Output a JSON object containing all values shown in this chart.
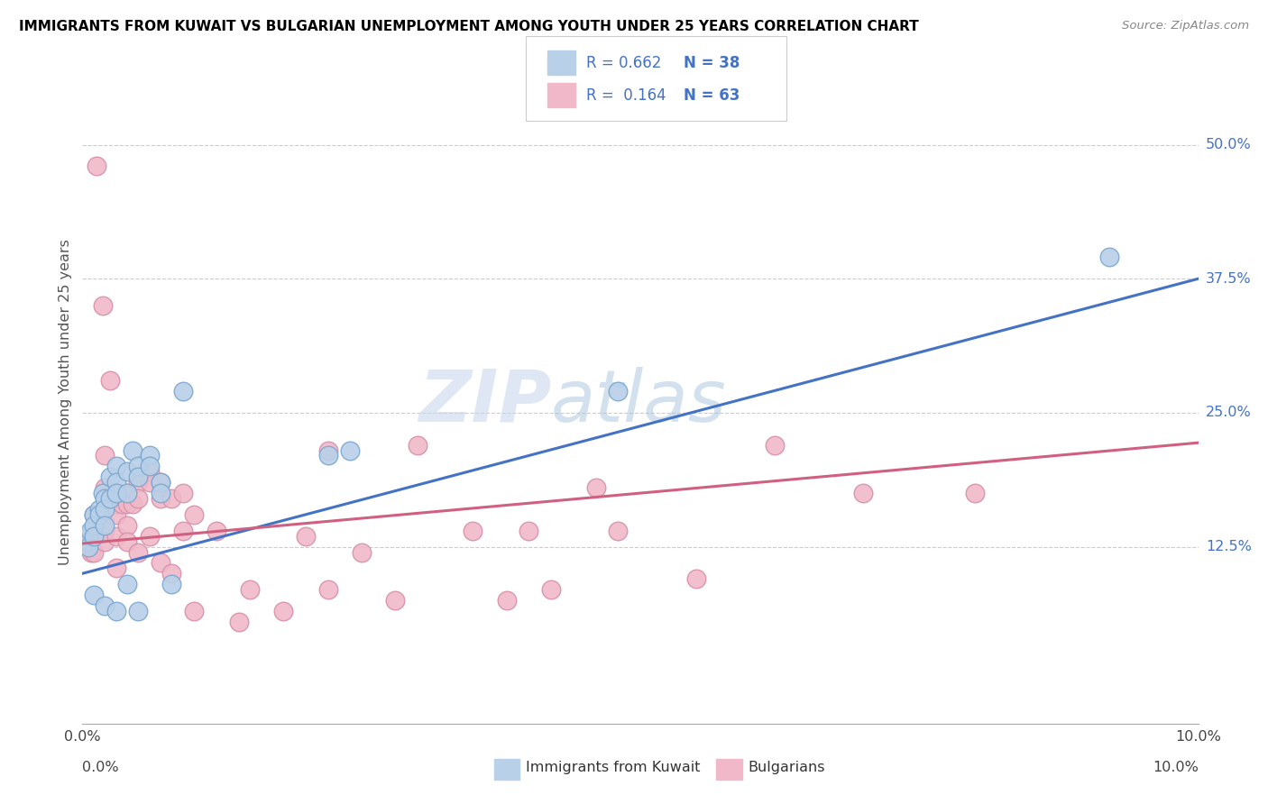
{
  "title": "IMMIGRANTS FROM KUWAIT VS BULGARIAN UNEMPLOYMENT AMONG YOUTH UNDER 25 YEARS CORRELATION CHART",
  "source": "Source: ZipAtlas.com",
  "ylabel": "Unemployment Among Youth under 25 years",
  "xlim": [
    0.0,
    0.1
  ],
  "ylim": [
    -0.04,
    0.56
  ],
  "ytick_positions": [
    0.125,
    0.25,
    0.375,
    0.5
  ],
  "ytick_labels": [
    "12.5%",
    "25.0%",
    "37.5%",
    "50.0%"
  ],
  "grid_color": "#cccccc",
  "watermark_zip": "ZIP",
  "watermark_atlas": "atlas",
  "color_blue_fill": "#b8d0e8",
  "color_blue_edge": "#7ba7d0",
  "color_pink_fill": "#f0b8c8",
  "color_pink_edge": "#d890a8",
  "line_color_blue": "#4472c4",
  "line_color_pink": "#d06080",
  "legend_text_color": "#4472c4",
  "blue_line_y0": 0.1,
  "blue_line_y1": 0.375,
  "pink_line_y0": 0.128,
  "pink_line_y1": 0.222,
  "blue_scatter_x": [
    0.0005,
    0.0005,
    0.0005,
    0.0007,
    0.001,
    0.001,
    0.001,
    0.001,
    0.0015,
    0.0015,
    0.0018,
    0.002,
    0.002,
    0.002,
    0.002,
    0.0025,
    0.0025,
    0.003,
    0.003,
    0.003,
    0.003,
    0.004,
    0.004,
    0.004,
    0.0045,
    0.005,
    0.005,
    0.005,
    0.006,
    0.006,
    0.007,
    0.007,
    0.008,
    0.009,
    0.022,
    0.024,
    0.048,
    0.092
  ],
  "blue_scatter_y": [
    0.135,
    0.13,
    0.125,
    0.14,
    0.155,
    0.145,
    0.135,
    0.08,
    0.16,
    0.155,
    0.175,
    0.17,
    0.16,
    0.145,
    0.07,
    0.19,
    0.17,
    0.2,
    0.185,
    0.175,
    0.065,
    0.195,
    0.175,
    0.09,
    0.215,
    0.2,
    0.19,
    0.065,
    0.21,
    0.2,
    0.185,
    0.175,
    0.09,
    0.27,
    0.21,
    0.215,
    0.27,
    0.395
  ],
  "pink_scatter_x": [
    0.0005,
    0.0006,
    0.0007,
    0.0008,
    0.001,
    0.001,
    0.001,
    0.001,
    0.0013,
    0.0015,
    0.0018,
    0.002,
    0.002,
    0.002,
    0.002,
    0.002,
    0.0025,
    0.003,
    0.003,
    0.003,
    0.003,
    0.003,
    0.0035,
    0.004,
    0.004,
    0.004,
    0.004,
    0.0045,
    0.005,
    0.005,
    0.005,
    0.006,
    0.006,
    0.006,
    0.007,
    0.007,
    0.007,
    0.008,
    0.008,
    0.009,
    0.009,
    0.01,
    0.01,
    0.012,
    0.014,
    0.015,
    0.018,
    0.02,
    0.022,
    0.025,
    0.028,
    0.03,
    0.035,
    0.038,
    0.04,
    0.042,
    0.046,
    0.048,
    0.055,
    0.062,
    0.07,
    0.08,
    0.022
  ],
  "pink_scatter_y": [
    0.135,
    0.13,
    0.125,
    0.12,
    0.155,
    0.14,
    0.135,
    0.12,
    0.48,
    0.155,
    0.35,
    0.21,
    0.18,
    0.16,
    0.14,
    0.13,
    0.28,
    0.175,
    0.165,
    0.155,
    0.135,
    0.105,
    0.165,
    0.175,
    0.165,
    0.145,
    0.13,
    0.165,
    0.185,
    0.17,
    0.12,
    0.195,
    0.185,
    0.135,
    0.185,
    0.17,
    0.11,
    0.17,
    0.1,
    0.175,
    0.14,
    0.155,
    0.065,
    0.14,
    0.055,
    0.085,
    0.065,
    0.135,
    0.085,
    0.12,
    0.075,
    0.22,
    0.14,
    0.075,
    0.14,
    0.085,
    0.18,
    0.14,
    0.095,
    0.22,
    0.175,
    0.175,
    0.215
  ]
}
